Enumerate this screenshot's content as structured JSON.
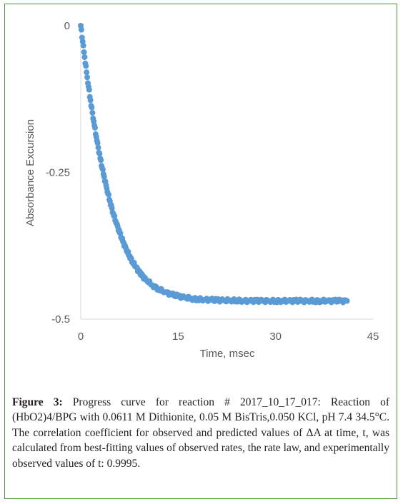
{
  "chart_data": {
    "type": "scatter",
    "xlabel": "Time, msec",
    "ylabel": "Absorbance Excursion",
    "xlim": [
      0,
      45
    ],
    "ylim": [
      -0.5,
      0
    ],
    "x_ticks": [
      0,
      15,
      30,
      45
    ],
    "x_tick_labels": [
      "0",
      "15",
      "30",
      "45"
    ],
    "y_ticks": [
      0,
      -0.25,
      -0.5
    ],
    "y_tick_labels": [
      "0",
      "-0.25",
      "-0.5"
    ],
    "grid": false,
    "marker_color": "#5b9bd5",
    "series": [
      {
        "x": [
          0,
          0.5,
          1,
          1.5,
          2,
          2.5,
          3,
          3.5,
          4,
          4.5,
          5,
          5.5,
          6,
          6.5,
          7,
          7.5,
          8,
          8.5,
          9,
          9.5,
          10,
          11,
          12,
          13,
          14,
          15,
          16,
          17,
          18,
          19,
          20,
          21,
          22,
          23,
          24,
          25,
          26,
          27,
          28,
          29,
          30,
          31,
          32,
          33,
          34,
          35,
          36,
          37,
          38,
          39,
          40,
          41
        ],
        "y": [
          0.0,
          -0.045,
          -0.088,
          -0.127,
          -0.163,
          -0.196,
          -0.226,
          -0.253,
          -0.277,
          -0.299,
          -0.32,
          -0.337,
          -0.353,
          -0.368,
          -0.381,
          -0.392,
          -0.403,
          -0.411,
          -0.42,
          -0.427,
          -0.432,
          -0.442,
          -0.449,
          -0.454,
          -0.458,
          -0.461,
          -0.463,
          -0.465,
          -0.466,
          -0.467,
          -0.467,
          -0.468,
          -0.468,
          -0.468,
          -0.468,
          -0.469,
          -0.469,
          -0.469,
          -0.469,
          -0.469,
          -0.469,
          -0.469,
          -0.469,
          -0.469,
          -0.469,
          -0.469,
          -0.469,
          -0.469,
          -0.469,
          -0.469,
          -0.469,
          -0.469
        ]
      }
    ]
  },
  "caption": {
    "label": "Figure 3:",
    "text": " Progress curve for reaction # 2017_10_17_017: Reaction of (HbO2)4/BPG with 0.0611 M Dithionite, 0.05 M BisTris,0.050 KCl, pH 7.4 34.5°C. The correlation coefficient for observed and predicted values of ΔA at time, t, was calculated from best-fitting values of observed rates, the rate law, and experimentally observed values of t: 0.9995."
  }
}
